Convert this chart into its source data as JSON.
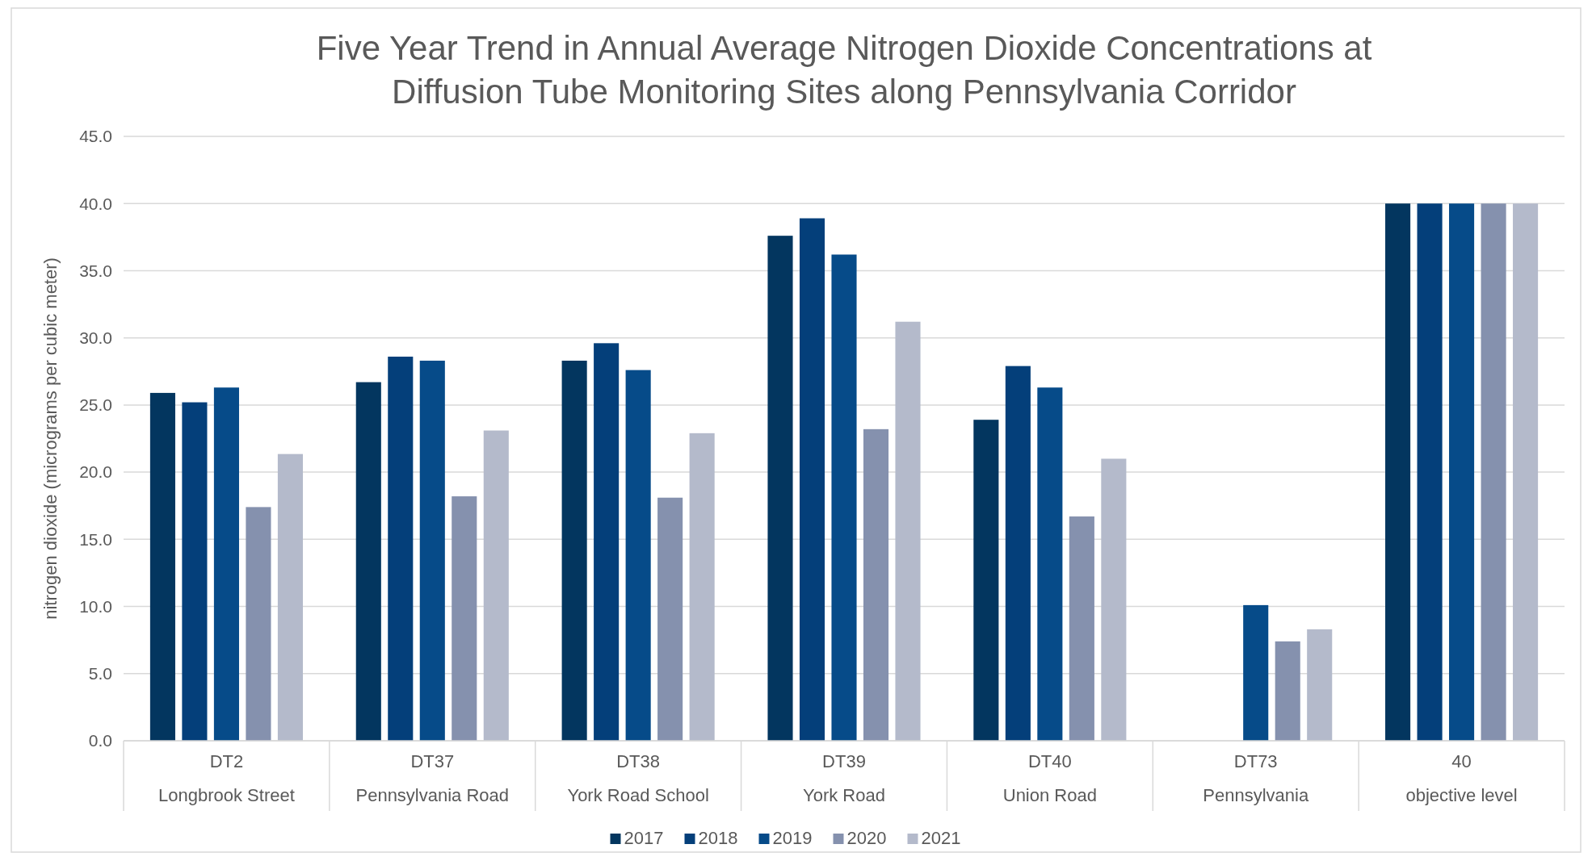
{
  "chart_data": {
    "type": "bar",
    "title": "Five Year Trend in Annual Average Nitrogen Dioxide Concentrations at\nDiffusion Tube Monitoring Sites along Pennsylvania Corridor",
    "ylabel": "nitrogen dioxide (micrograms per cubic meter)",
    "categories": [
      "DT2\nLongbrook Street",
      "DT37\nPennsylvania Road",
      "DT38\nYork Road School",
      "DT39\nYork Road",
      "DT40\nUnion Road",
      "DT73\nPennsylvania",
      "40\nobjective level"
    ],
    "series": [
      {
        "name": "2017",
        "color": "#03365f",
        "values": [
          25.9,
          26.7,
          28.3,
          37.6,
          23.9,
          null,
          40
        ]
      },
      {
        "name": "2018",
        "color": "#043f7a",
        "values": [
          25.2,
          28.6,
          29.6,
          38.9,
          27.9,
          null,
          40
        ]
      },
      {
        "name": "2019",
        "color": "#064b89",
        "values": [
          26.3,
          28.3,
          27.6,
          36.2,
          26.3,
          10.1,
          40
        ]
      },
      {
        "name": "2020",
        "color": "#8591ae",
        "values": [
          17.4,
          18.2,
          18.1,
          23.2,
          16.7,
          7.4,
          40
        ]
      },
      {
        "name": "2021",
        "color": "#b4bacb",
        "values": [
          21.35,
          23.1,
          22.9,
          31.2,
          21.0,
          8.3,
          40
        ]
      }
    ],
    "ylim": [
      0,
      45
    ],
    "yticks": [
      {
        "value": 0,
        "label": "0.0"
      },
      {
        "value": 5,
        "label": "5.0"
      },
      {
        "value": 10,
        "label": "10.0"
      },
      {
        "value": 15,
        "label": "15.0"
      },
      {
        "value": 20,
        "label": "20.0"
      },
      {
        "value": 25,
        "label": "25.0"
      },
      {
        "value": 30,
        "label": "30.0"
      },
      {
        "value": 35,
        "label": "35.0"
      },
      {
        "value": 40,
        "label": "40.0"
      },
      {
        "value": 45,
        "label": "45.0"
      }
    ],
    "grid": "y",
    "legend": "bottom"
  }
}
